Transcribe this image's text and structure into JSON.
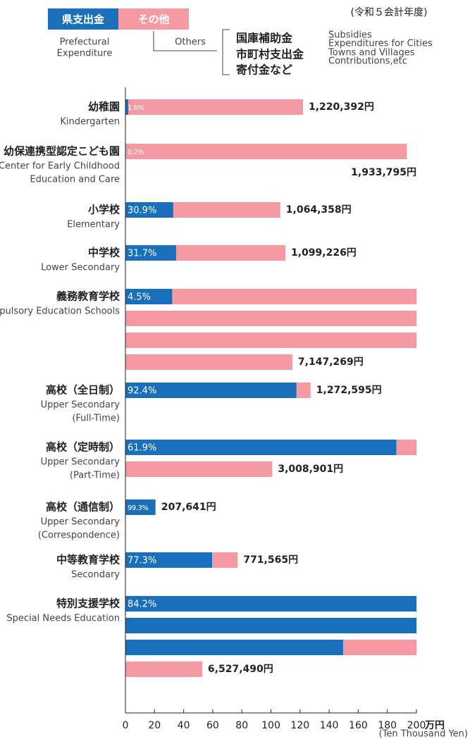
{
  "chart_data": {
    "type": "bar",
    "orientation": "horizontal",
    "title": "(令和５会計年度)",
    "categories": [
      "幼稚園",
      "幼保連携型認定こども園",
      "小学校",
      "中学校",
      "義務教育学校",
      "高校（全日制）",
      "高校（定時制）",
      "高校（通信制）",
      "中等教育学校",
      "特別支援学校"
    ],
    "categories_en": [
      [
        "Kindergarten"
      ],
      [
        "Center for Early Childhood",
        "Education and Care"
      ],
      [
        "Elementary"
      ],
      [
        "Lower Secondary"
      ],
      [
        "Compulsory Education Schools"
      ],
      [
        "Upper Secondary",
        "(Full-Time)"
      ],
      [
        "Upper Secondary",
        "(Part-Time)"
      ],
      [
        "Upper Secondary",
        "(Correspondence)"
      ],
      [
        "Secondary"
      ],
      [
        "Special Needs Education"
      ]
    ],
    "totals": {
      "values": [
        122.0392,
        193.3795,
        106.4358,
        109.9226,
        714.7269,
        127.2595,
        300.8901,
        20.7641,
        77.1565,
        652.749
      ],
      "value_labels": [
        "1,220,392円",
        "1,933,795円",
        "1,064,358円",
        "1,099,226円",
        "7,147,269円",
        "1,272,595円",
        "3,008,901円",
        "207,641円",
        "771,565円",
        "6,527,490円"
      ]
    },
    "series": [
      {
        "name": "県支出金",
        "name_en": [
          "Prefectural",
          "Expenditure"
        ],
        "color": "#1a6fba",
        "values": [
          1.6,
          0.2,
          30.9,
          31.7,
          4.5,
          92.4,
          61.9,
          99.3,
          77.3,
          84.2
        ],
        "value_labels": [
          "1.6%",
          "0.2%",
          "30.9%",
          "31.7%",
          "4.5%",
          "92.4%",
          "61.9%",
          "99.3%",
          "77.3%",
          "84.2%"
        ]
      },
      {
        "name": "その他",
        "name_en": [
          "Others"
        ],
        "color": "#f59aa3",
        "breakdown": [
          "国庫補助金",
          "市町村支出金",
          "寄付金など"
        ],
        "breakdown_en": [
          "Subsidies",
          "Expenditures for Cities",
          "Towns and Villages",
          "Contributions,etc"
        ]
      }
    ],
    "xlim": [
      0,
      200
    ],
    "xticks": [
      0,
      20,
      40,
      60,
      80,
      100,
      120,
      140,
      160,
      180,
      200
    ],
    "x_unit": "万円",
    "xlabel": "(Ten Thousand Yen)"
  }
}
